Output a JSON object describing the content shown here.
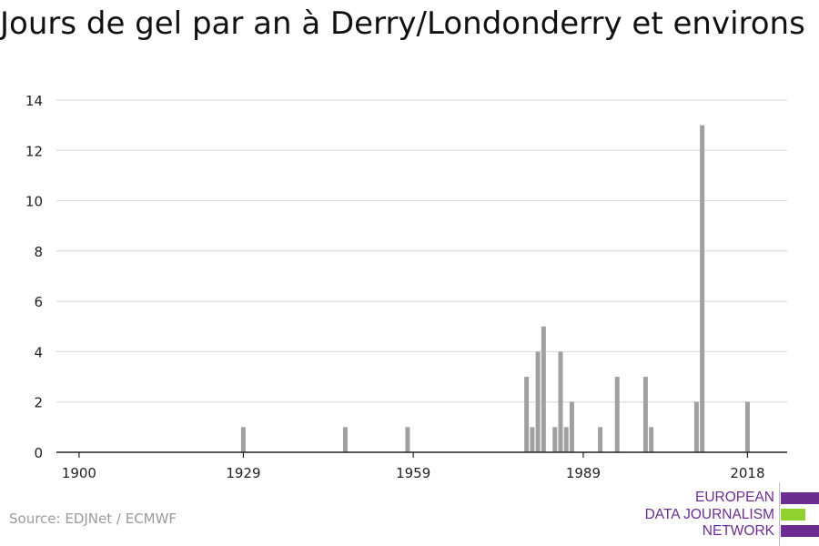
{
  "chart_data": {
    "type": "bar",
    "title": "Jours de gel par an à Derry/Londonderry et environs",
    "xlabel": "",
    "ylabel": "",
    "xlim": [
      1896,
      2025
    ],
    "ylim": [
      0,
      14
    ],
    "y_ticks": [
      0,
      2,
      4,
      6,
      8,
      10,
      12,
      14
    ],
    "x_ticks": [
      1900,
      1929,
      1959,
      1989,
      2018
    ],
    "grid": true,
    "legend": "none",
    "x": [
      1929,
      1947,
      1958,
      1979,
      1980,
      1981,
      1982,
      1984,
      1985,
      1986,
      1987,
      1992,
      1995,
      2000,
      2001,
      2009,
      2010,
      2018
    ],
    "values": [
      1,
      1,
      1,
      3,
      1,
      4,
      5,
      1,
      4,
      1,
      2,
      1,
      3,
      3,
      1,
      2,
      13,
      2
    ]
  },
  "colors": {
    "bar": "#a0a0a0",
    "grid": "#dcdcdc",
    "axis": "#222222",
    "tick_text": "#222222",
    "source_text": "#9a9a9a",
    "logo_purple": "#6b2d8f",
    "logo_green": "#8fd12d"
  },
  "source": "Source: EDJNet / ECMWF",
  "logo": {
    "line1": "EUROPEAN",
    "line2": "DATA JOURNALISM",
    "line3": "NETWORK"
  }
}
